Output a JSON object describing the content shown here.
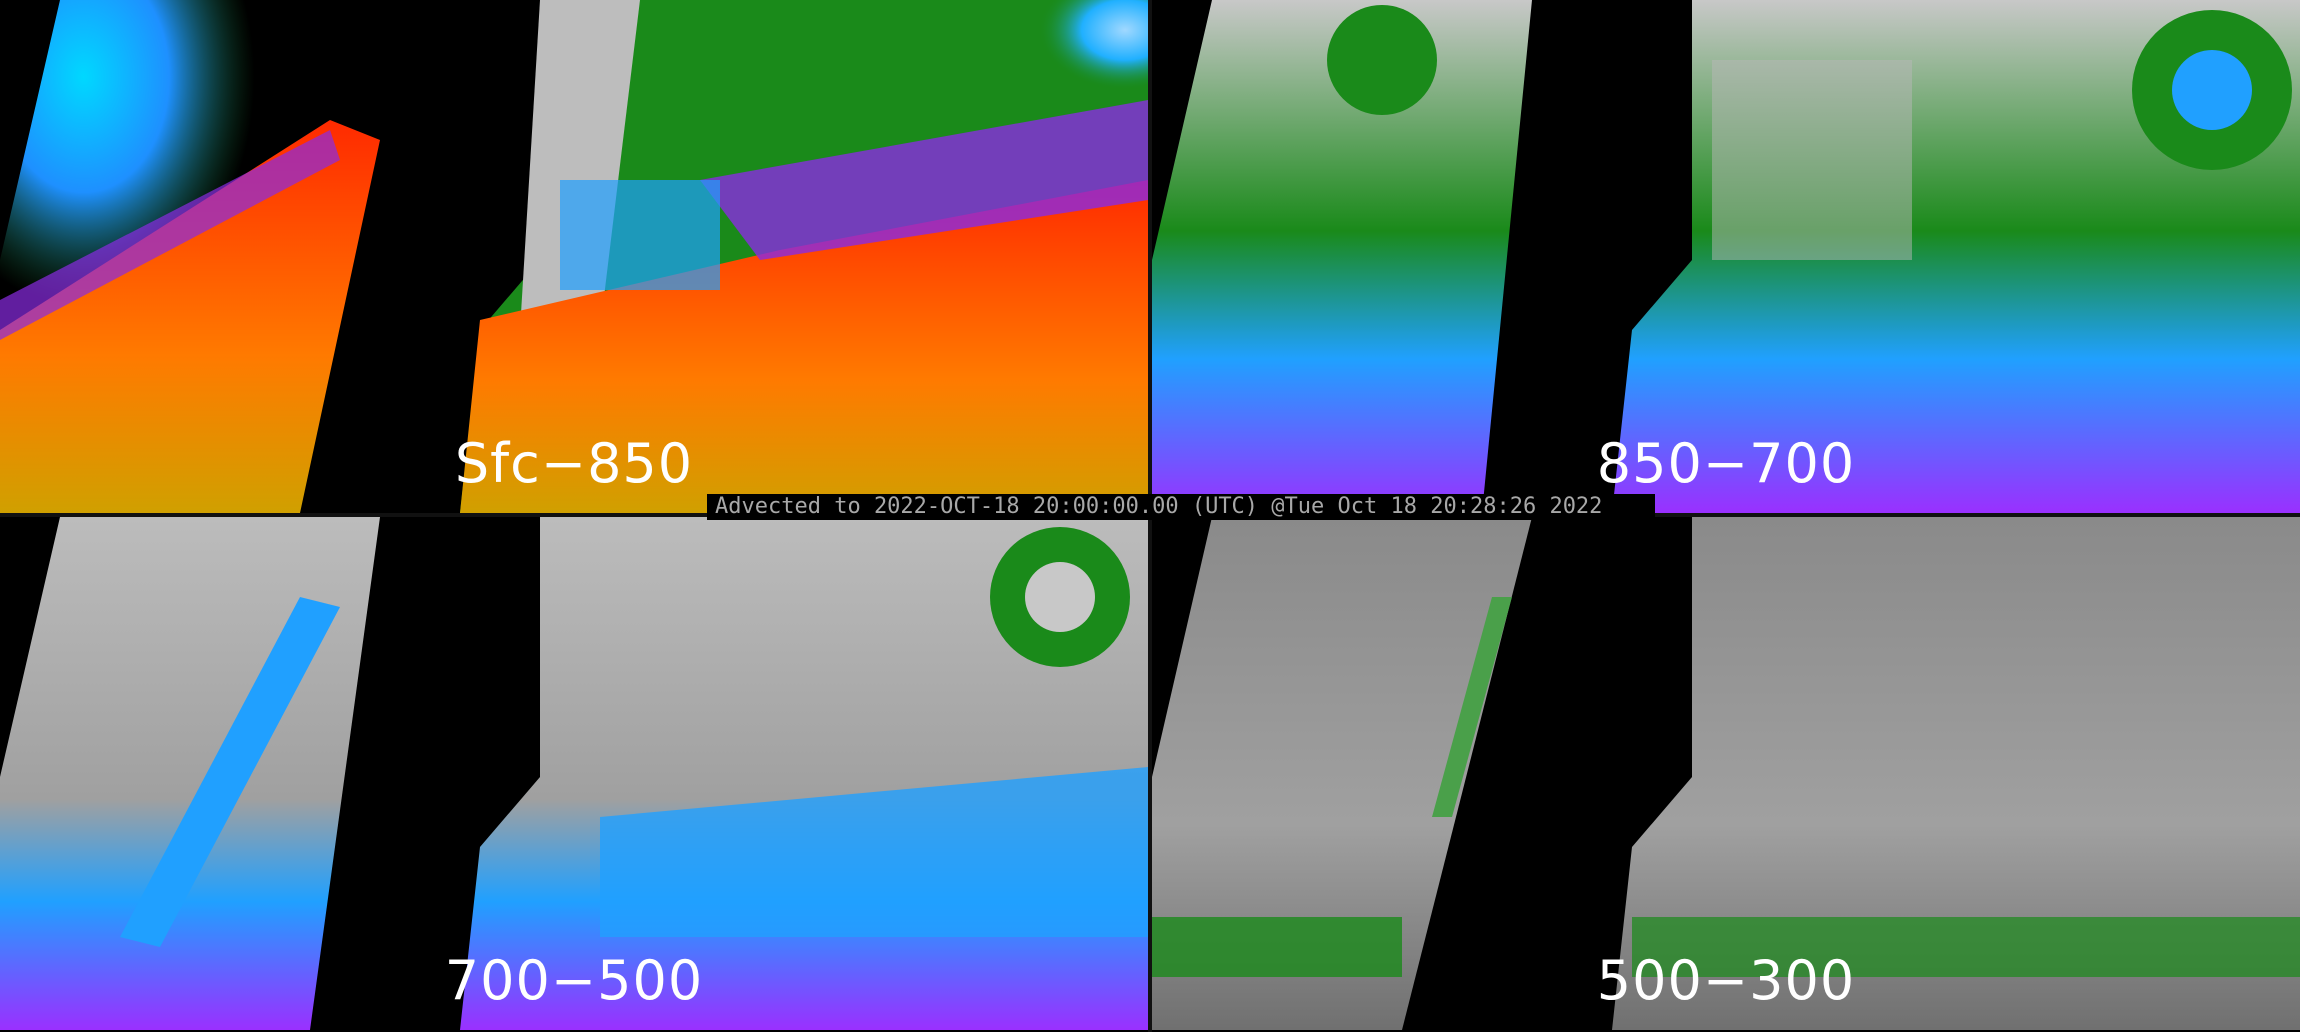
{
  "banner": {
    "text": "Advected to 2022-OCT-18 20:00:00.00 (UTC) @Tue Oct 18 20:28:26 2022"
  },
  "panels": [
    {
      "label": "Sfc−850",
      "palette": [
        "#ff3300",
        "#ff8800",
        "#e0b000",
        "#8a2be2",
        "#20a0ff",
        "#00e0ff",
        "#1a8a1a"
      ]
    },
    {
      "label": "850−700",
      "palette": [
        "#9a30ff",
        "#20a0ff",
        "#00e0ff",
        "#1a8a1a",
        "#bcbcbc"
      ]
    },
    {
      "label": "700−500",
      "palette": [
        "#9a30ff",
        "#20a0ff",
        "#1a8a1a",
        "#c0c0c0"
      ]
    },
    {
      "label": "500−300",
      "palette": [
        "#1a8a1a",
        "#808080",
        "#a8a8a8"
      ]
    }
  ]
}
